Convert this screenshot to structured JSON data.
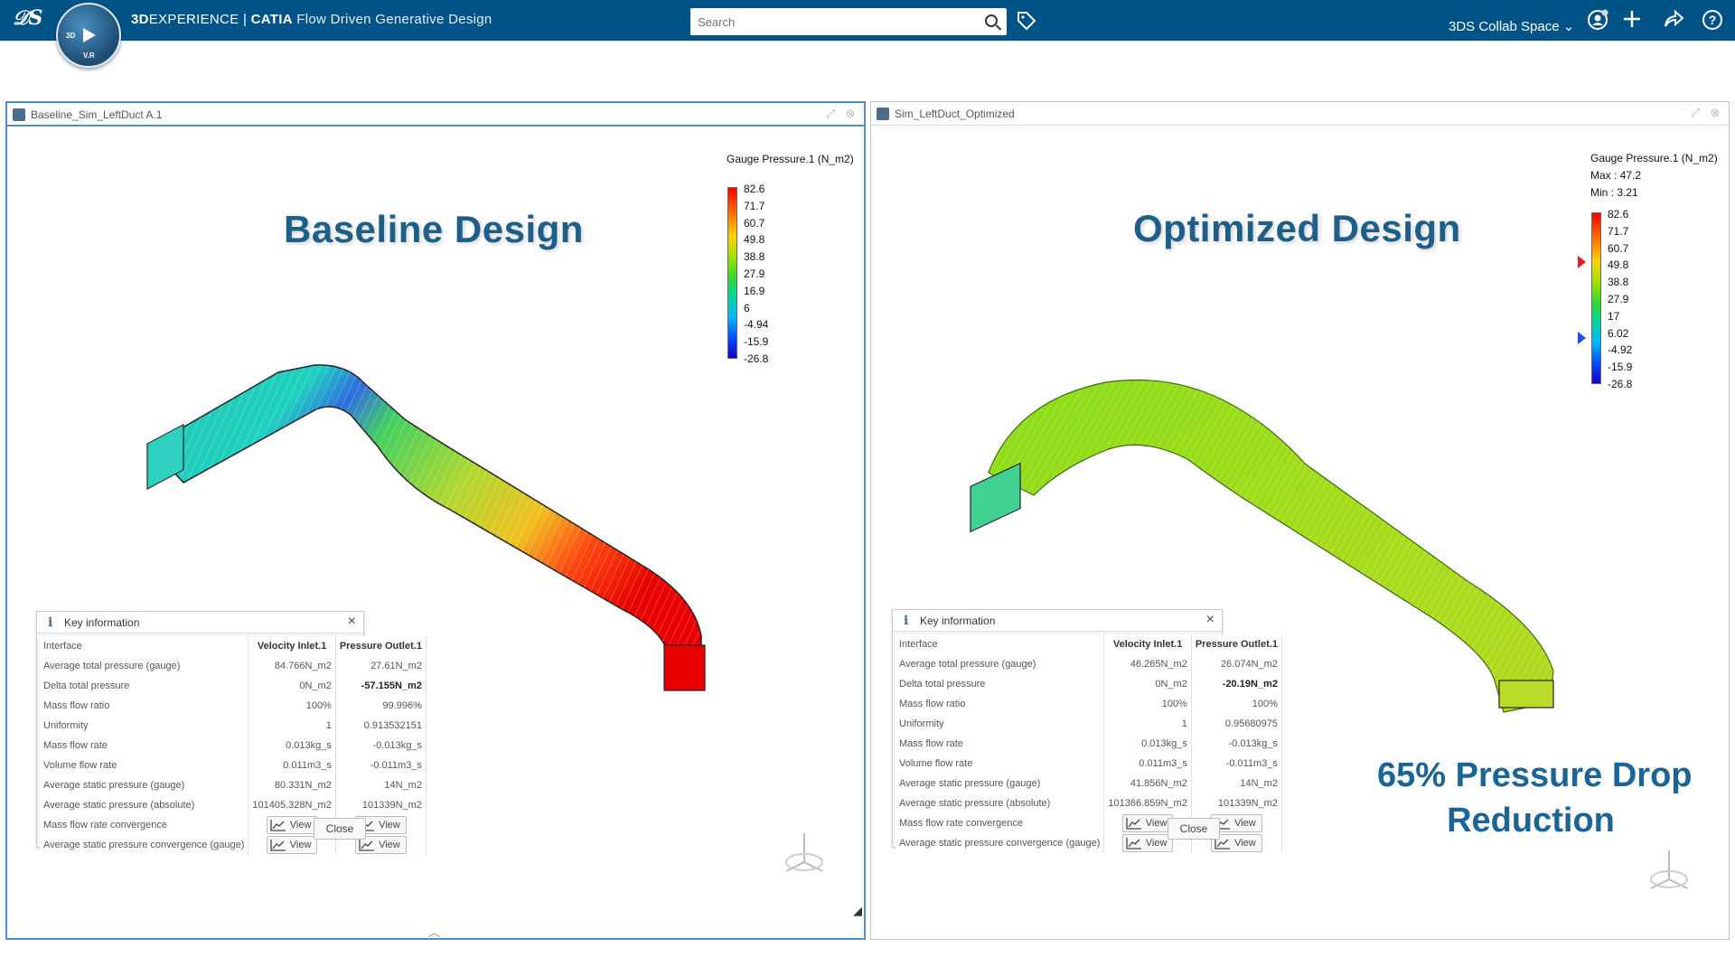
{
  "header": {
    "brand_bold": "3D",
    "brand_rest": "EXPERIENCE | ",
    "product": "CATIA",
    "app_name": "Flow Driven Generative Design",
    "compass_top": "3D",
    "compass_bottom": "V.R",
    "search_placeholder": "Search",
    "collab_space": "3DS Collab Space",
    "colors": {
      "bar": "#005386"
    }
  },
  "panels": [
    {
      "tab_title": "Baseline_Sim_LeftDuct A.1",
      "big_title": "Baseline Design",
      "legend": {
        "title": "Gauge Pressure.1 (N_m2)",
        "max_label": "",
        "min_label": "",
        "values": [
          "82.6",
          "71.7",
          "60.7",
          "49.8",
          "38.8",
          "27.9",
          "16.9",
          "6",
          "-4.94",
          "-15.9",
          "-26.8"
        ]
      },
      "key_info": {
        "title": "Key information",
        "columns": [
          "Interface",
          "Velocity Inlet.1",
          "Pressure Outlet.1"
        ],
        "rows": [
          [
            "Average total pressure (gauge)",
            "84.766N_m2",
            "27.61N_m2"
          ],
          [
            "Delta total pressure",
            "0N_m2",
            "-57.155N_m2"
          ],
          [
            "Mass flow ratio",
            "100%",
            "99.996%"
          ],
          [
            "Uniformity",
            "1",
            "0.913532151"
          ],
          [
            "Mass flow rate",
            "0.013kg_s",
            "-0.013kg_s"
          ],
          [
            "Volume flow rate",
            "0.011m3_s",
            "-0.011m3_s"
          ],
          [
            "Average static pressure (gauge)",
            "80.331N_m2",
            "14N_m2"
          ],
          [
            "Average static pressure (absolute)",
            "101405.328N_m2",
            "101339N_m2"
          ]
        ],
        "view_rows": [
          "Mass flow rate convergence",
          "Average static pressure convergence (gauge)"
        ],
        "view_label": "View",
        "close_label": "Close"
      }
    },
    {
      "tab_title": "Sim_LeftDuct_Optimized",
      "big_title": "Optimized Design",
      "callout_line1": "65% Pressure Drop",
      "callout_line2": "Reduction",
      "legend": {
        "title": "Gauge Pressure.1 (N_m2)",
        "max_label": "Max : 47.2",
        "min_label": "Min : 3.21",
        "values": [
          "82.6",
          "71.7",
          "60.7",
          "49.8",
          "38.8",
          "27.9",
          "17",
          "6.02",
          "-4.92",
          "-15.9",
          "-26.8"
        ]
      },
      "key_info": {
        "title": "Key information",
        "columns": [
          "Interface",
          "Velocity Inlet.1",
          "Pressure Outlet.1"
        ],
        "rows": [
          [
            "Average total pressure (gauge)",
            "46.265N_m2",
            "26.074N_m2"
          ],
          [
            "Delta total pressure",
            "0N_m2",
            "-20.19N_m2"
          ],
          [
            "Mass flow ratio",
            "100%",
            "100%"
          ],
          [
            "Uniformity",
            "1",
            "0.95680975"
          ],
          [
            "Mass flow rate",
            "0.013kg_s",
            "-0.013kg_s"
          ],
          [
            "Volume flow rate",
            "0.011m3_s",
            "-0.011m3_s"
          ],
          [
            "Average static pressure (gauge)",
            "41.856N_m2",
            "14N_m2"
          ],
          [
            "Average static pressure (absolute)",
            "101366.859N_m2",
            "101339N_m2"
          ]
        ],
        "view_rows": [
          "Mass flow rate convergence",
          "Average static pressure convergence (gauge)"
        ],
        "view_label": "View",
        "close_label": "Close"
      }
    }
  ]
}
